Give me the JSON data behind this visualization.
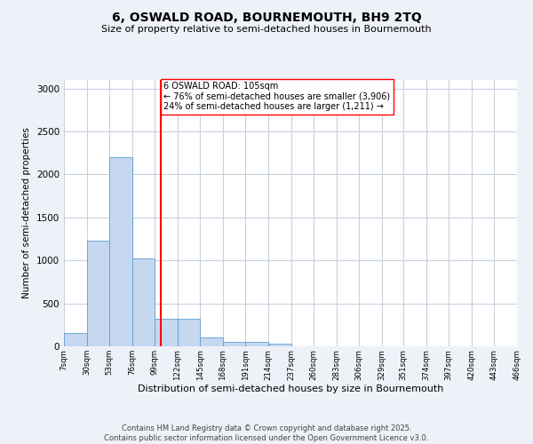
{
  "title1": "6, OSWALD ROAD, BOURNEMOUTH, BH9 2TQ",
  "title2": "Size of property relative to semi-detached houses in Bournemouth",
  "xlabel": "Distribution of semi-detached houses by size in Bournemouth",
  "ylabel": "Number of semi-detached properties",
  "bar_color": "#c5d8f0",
  "bar_edge_color": "#5a9fd4",
  "vline_x": 105,
  "vline_color": "red",
  "annotation_title": "6 OSWALD ROAD: 105sqm",
  "annotation_line1": "← 76% of semi-detached houses are smaller (3,906)",
  "annotation_line2": "24% of semi-detached houses are larger (1,211) →",
  "bin_labels": [
    "7sqm",
    "30sqm",
    "53sqm",
    "76sqm",
    "99sqm",
    "122sqm",
    "145sqm",
    "168sqm",
    "191sqm",
    "214sqm",
    "237sqm",
    "260sqm",
    "283sqm",
    "306sqm",
    "329sqm",
    "351sqm",
    "374sqm",
    "397sqm",
    "420sqm",
    "443sqm",
    "466sqm"
  ],
  "bin_edges": [
    7,
    30,
    53,
    76,
    99,
    122,
    145,
    168,
    191,
    214,
    237,
    260,
    283,
    306,
    329,
    351,
    374,
    397,
    420,
    443,
    466
  ],
  "bar_heights": [
    150,
    1230,
    2200,
    1020,
    320,
    320,
    100,
    50,
    50,
    30,
    5,
    5,
    5,
    0,
    0,
    5,
    0,
    0,
    5,
    0
  ],
  "ylim": [
    0,
    3100
  ],
  "yticks": [
    0,
    500,
    1000,
    1500,
    2000,
    2500,
    3000
  ],
  "footer1": "Contains HM Land Registry data © Crown copyright and database right 2025.",
  "footer2": "Contains public sector information licensed under the Open Government Licence v3.0.",
  "bg_color": "#eef1f8",
  "plot_bg_color": "#ffffff",
  "grid_color": "#c8d0e0"
}
